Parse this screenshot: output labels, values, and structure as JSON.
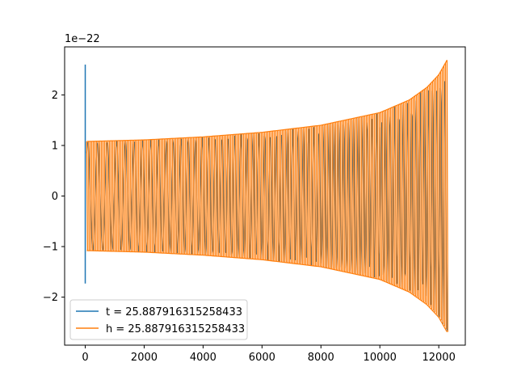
{
  "chart_data": {
    "type": "line",
    "title": "",
    "xlabel": "",
    "ylabel": "",
    "y_offset_label": "1e−22",
    "xlim": [
      -700,
      12900
    ],
    "ylim": [
      -2.95,
      2.95
    ],
    "x_ticks": [
      0,
      2000,
      4000,
      6000,
      8000,
      10000,
      12000
    ],
    "x_tick_labels": [
      "0",
      "2000",
      "4000",
      "6000",
      "8000",
      "10000",
      "12000"
    ],
    "y_ticks": [
      -2,
      -1,
      0,
      1,
      2
    ],
    "y_tick_labels": [
      "−2",
      "−1",
      "0",
      "1",
      "2"
    ],
    "grid": false,
    "legend_position": "lower-left",
    "series": [
      {
        "name": "t = 25.887916315258433",
        "color": "#1f77b4",
        "description_points": {
          "spike": {
            "x": 0,
            "ymax": 2.6,
            "ymin": -1.73
          },
          "envelope": [
            {
              "x": 50,
              "amp": 1.08
            },
            {
              "x": 2000,
              "amp": 1.11
            },
            {
              "x": 4000,
              "amp": 1.17
            },
            {
              "x": 6000,
              "amp": 1.26
            },
            {
              "x": 8000,
              "amp": 1.4
            },
            {
              "x": 10000,
              "amp": 1.65
            },
            {
              "x": 11000,
              "amp": 1.9
            },
            {
              "x": 11600,
              "amp": 2.15
            },
            {
              "x": 12000,
              "amp": 2.4
            },
            {
              "x": 12290,
              "amp": 2.7
            }
          ]
        }
      },
      {
        "name": "h = 25.887916315258433",
        "color": "#ff7f0e",
        "description_points": {
          "envelope": [
            {
              "x": 50,
              "amp": 1.08
            },
            {
              "x": 2000,
              "amp": 1.11
            },
            {
              "x": 4000,
              "amp": 1.17
            },
            {
              "x": 6000,
              "amp": 1.26
            },
            {
              "x": 8000,
              "amp": 1.4
            },
            {
              "x": 10000,
              "amp": 1.65
            },
            {
              "x": 11000,
              "amp": 1.9
            },
            {
              "x": 11600,
              "amp": 2.15
            },
            {
              "x": 12000,
              "amp": 2.4
            },
            {
              "x": 12290,
              "amp": 2.7
            }
          ]
        }
      }
    ]
  }
}
